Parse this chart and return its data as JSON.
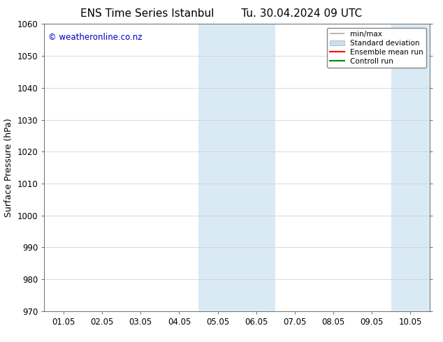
{
  "title_left": "ENS Time Series Istanbul",
  "title_right": "Tu. 30.04.2024 09 UTC",
  "ylabel": "Surface Pressure (hPa)",
  "xlabel": "",
  "ylim": [
    970,
    1060
  ],
  "yticks": [
    970,
    980,
    990,
    1000,
    1010,
    1020,
    1030,
    1040,
    1050,
    1060
  ],
  "xtick_labels": [
    "01.05",
    "02.05",
    "03.05",
    "04.05",
    "05.05",
    "06.05",
    "07.05",
    "08.05",
    "09.05",
    "10.05"
  ],
  "xtick_positions": [
    0,
    1,
    2,
    3,
    4,
    5,
    6,
    7,
    8,
    9
  ],
  "xlim": [
    -0.5,
    9.5
  ],
  "background_color": "#ffffff",
  "plot_bg_color": "#ffffff",
  "shaded_bands": [
    {
      "x_start": 3.5,
      "x_end": 5.5,
      "color": "#daeaf5"
    },
    {
      "x_start": 8.5,
      "x_end": 9.5,
      "color": "#daeaf5"
    }
  ],
  "watermark_text": "© weatheronline.co.nz",
  "watermark_color": "#0000cc",
  "watermark_fontsize": 8.5,
  "legend_entries": [
    {
      "label": "min/max",
      "color": "#aaaaaa",
      "type": "minmax"
    },
    {
      "label": "Standard deviation",
      "color": "#c8dff0",
      "type": "box"
    },
    {
      "label": "Ensemble mean run",
      "color": "#ff0000",
      "type": "line"
    },
    {
      "label": "Controll run",
      "color": "#008800",
      "type": "line"
    }
  ],
  "title_fontsize": 11,
  "axis_label_fontsize": 9,
  "tick_fontsize": 8.5,
  "legend_fontsize": 7.5,
  "font_family": "DejaVu Sans"
}
